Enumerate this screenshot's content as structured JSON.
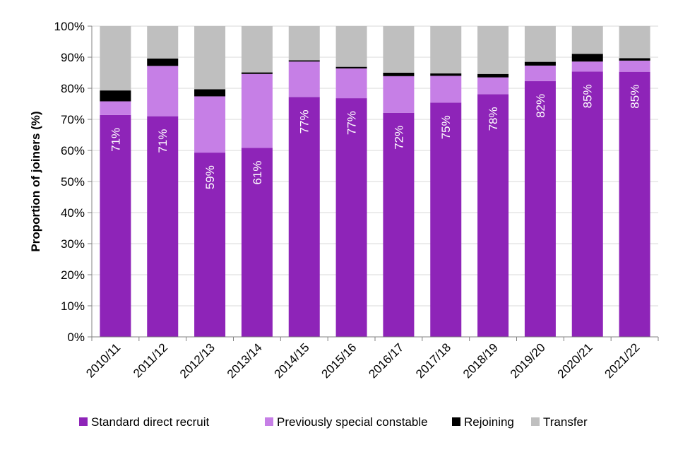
{
  "chart_data": {
    "type": "bar",
    "stacked": true,
    "title": "",
    "xlabel": "",
    "ylabel": "Proportion of joiners (%)",
    "ylim": [
      0,
      100
    ],
    "yticks": [
      "0%",
      "10%",
      "20%",
      "30%",
      "40%",
      "50%",
      "60%",
      "70%",
      "80%",
      "90%",
      "100%"
    ],
    "categories": [
      "2010/11",
      "2011/12",
      "2012/13",
      "2013/14",
      "2014/15",
      "2015/16",
      "2016/17",
      "2017/18",
      "2018/19",
      "2019/20",
      "2020/21",
      "2021/22"
    ],
    "series": [
      {
        "name": "Standard direct recruit",
        "color": "#8e24b8",
        "values": [
          71.4,
          71.0,
          59.3,
          60.8,
          77.2,
          76.8,
          72.1,
          75.4,
          78.1,
          82.3,
          85.4,
          85.3
        ],
        "labels": [
          "71%",
          "71%",
          "59%",
          "61%",
          "77%",
          "77%",
          "72%",
          "75%",
          "78%",
          "82%",
          "85%",
          "85%"
        ]
      },
      {
        "name": "Previously special constable",
        "color": "#c67fe6",
        "values": [
          4.4,
          16.2,
          18.1,
          23.8,
          11.4,
          9.6,
          11.8,
          8.6,
          5.4,
          5.0,
          3.2,
          3.6
        ]
      },
      {
        "name": "Rejoining",
        "color": "#000000",
        "values": [
          3.5,
          2.4,
          2.3,
          0.5,
          0.4,
          0.5,
          1.1,
          0.8,
          1.1,
          1.2,
          2.5,
          0.8
        ]
      },
      {
        "name": "Transfer",
        "color": "#bfbfbf",
        "values": [
          20.7,
          10.4,
          20.3,
          14.9,
          11.0,
          13.1,
          15.0,
          15.2,
          15.4,
          11.5,
          8.9,
          10.3
        ]
      }
    ],
    "grid": true,
    "legend_position": "bottom"
  }
}
